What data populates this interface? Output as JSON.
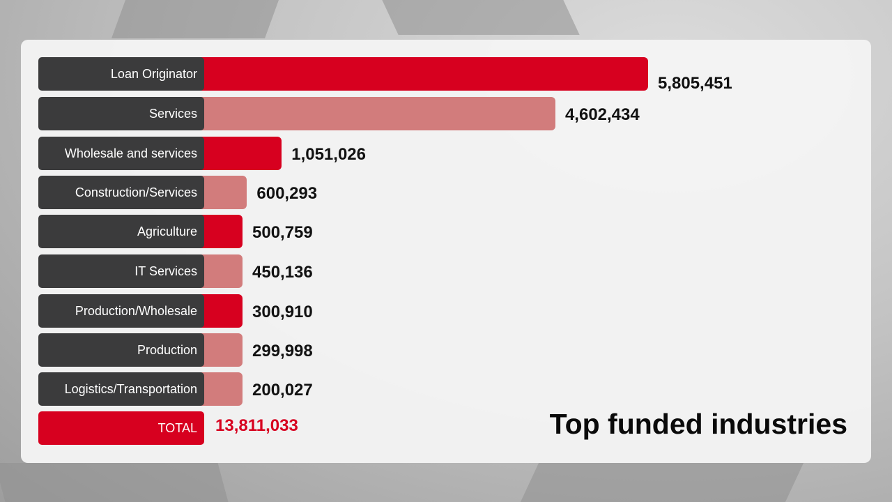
{
  "chart_data": {
    "type": "bar",
    "orientation": "horizontal",
    "title": "Top funded industries",
    "categories": [
      "Loan Originator",
      "Services",
      "Wholesale and services",
      "Construction/Services",
      "Agriculture",
      "IT Services",
      "Production/Wholesale",
      "Production",
      "Logistics/Transportation"
    ],
    "values": [
      5805451,
      4602434,
      1051026,
      600293,
      500759,
      450136,
      300910,
      299998,
      200027
    ],
    "value_labels": [
      "5,805,451",
      "4,602,434",
      "1,051,026",
      "600,293",
      "500,759",
      "450,136",
      "300,910",
      "299,998",
      "200,027"
    ],
    "bar_colors": [
      "#d7001f",
      "#d27c7c",
      "#d7001f",
      "#d27c7c",
      "#d7001f",
      "#d27c7c",
      "#d7001f",
      "#d27c7c",
      "#d27c7c"
    ],
    "total": {
      "label": "TOTAL",
      "value": 13811033,
      "value_label": "13,811,033"
    },
    "grid": false,
    "legend": "none"
  },
  "colors": {
    "accent_red": "#d7001f",
    "muted_red": "#d27c7c",
    "label_bg": "#3b3b3c"
  }
}
